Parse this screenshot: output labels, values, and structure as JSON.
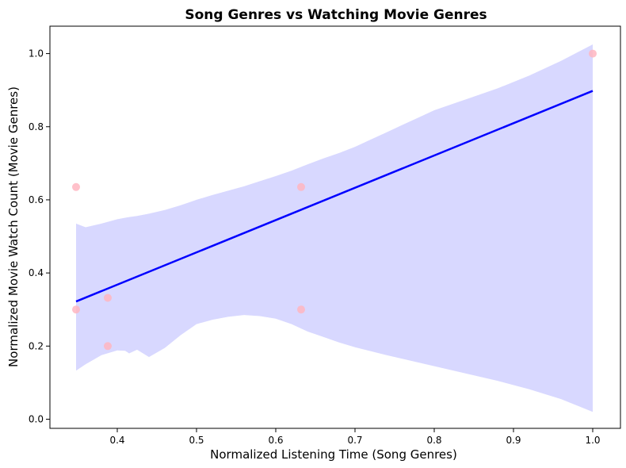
{
  "chart_data": {
    "type": "scatter",
    "title": "Song Genres vs Watching Movie Genres",
    "xlabel": "Normalized Listening Time (Song Genres)",
    "ylabel": "Normalized Movie Watch Count (Movie Genres)",
    "xlim": [
      0.315,
      1.035
    ],
    "ylim": [
      -0.025,
      1.075
    ],
    "xticks": [
      0.4,
      0.5,
      0.6,
      0.7,
      0.8,
      0.9,
      1.0
    ],
    "xtick_labels": [
      "0.4",
      "0.5",
      "0.6",
      "0.7",
      "0.8",
      "0.9",
      "1.0"
    ],
    "yticks": [
      0.0,
      0.2,
      0.4,
      0.6,
      0.8,
      1.0
    ],
    "ytick_labels": [
      "0.0",
      "0.2",
      "0.4",
      "0.6",
      "0.8",
      "1.0"
    ],
    "grid": false,
    "points": [
      {
        "x": 0.348,
        "y": 0.635
      },
      {
        "x": 0.348,
        "y": 0.3
      },
      {
        "x": 0.388,
        "y": 0.332
      },
      {
        "x": 0.388,
        "y": 0.2
      },
      {
        "x": 0.632,
        "y": 0.635
      },
      {
        "x": 0.632,
        "y": 0.3
      },
      {
        "x": 1.0,
        "y": 1.0
      }
    ],
    "regression": {
      "x": [
        0.348,
        1.0
      ],
      "y": [
        0.322,
        0.898
      ]
    },
    "ci_band": [
      {
        "x": 0.348,
        "lo": 0.133,
        "hi": 0.535
      },
      {
        "x": 0.36,
        "lo": 0.15,
        "hi": 0.525
      },
      {
        "x": 0.38,
        "lo": 0.175,
        "hi": 0.535
      },
      {
        "x": 0.4,
        "lo": 0.188,
        "hi": 0.547
      },
      {
        "x": 0.41,
        "lo": 0.187,
        "hi": 0.551
      },
      {
        "x": 0.415,
        "lo": 0.18,
        "hi": 0.553
      },
      {
        "x": 0.425,
        "lo": 0.19,
        "hi": 0.556
      },
      {
        "x": 0.44,
        "lo": 0.17,
        "hi": 0.562
      },
      {
        "x": 0.46,
        "lo": 0.195,
        "hi": 0.572
      },
      {
        "x": 0.48,
        "lo": 0.23,
        "hi": 0.585
      },
      {
        "x": 0.5,
        "lo": 0.26,
        "hi": 0.6
      },
      {
        "x": 0.52,
        "lo": 0.272,
        "hi": 0.613
      },
      {
        "x": 0.54,
        "lo": 0.28,
        "hi": 0.625
      },
      {
        "x": 0.56,
        "lo": 0.285,
        "hi": 0.637
      },
      {
        "x": 0.58,
        "lo": 0.282,
        "hi": 0.651
      },
      {
        "x": 0.6,
        "lo": 0.275,
        "hi": 0.665
      },
      {
        "x": 0.62,
        "lo": 0.26,
        "hi": 0.68
      },
      {
        "x": 0.64,
        "lo": 0.24,
        "hi": 0.697
      },
      {
        "x": 0.66,
        "lo": 0.225,
        "hi": 0.713
      },
      {
        "x": 0.68,
        "lo": 0.21,
        "hi": 0.728
      },
      {
        "x": 0.7,
        "lo": 0.197,
        "hi": 0.745
      },
      {
        "x": 0.72,
        "lo": 0.186,
        "hi": 0.765
      },
      {
        "x": 0.74,
        "lo": 0.175,
        "hi": 0.785
      },
      {
        "x": 0.76,
        "lo": 0.165,
        "hi": 0.805
      },
      {
        "x": 0.78,
        "lo": 0.155,
        "hi": 0.825
      },
      {
        "x": 0.8,
        "lo": 0.145,
        "hi": 0.845
      },
      {
        "x": 0.84,
        "lo": 0.125,
        "hi": 0.875
      },
      {
        "x": 0.88,
        "lo": 0.105,
        "hi": 0.905
      },
      {
        "x": 0.92,
        "lo": 0.082,
        "hi": 0.94
      },
      {
        "x": 0.96,
        "lo": 0.055,
        "hi": 0.98
      },
      {
        "x": 1.0,
        "lo": 0.02,
        "hi": 1.025
      }
    ],
    "colors": {
      "points": "#ffb6c1",
      "line": "#0000ff",
      "band": "#d8d8ff"
    }
  }
}
